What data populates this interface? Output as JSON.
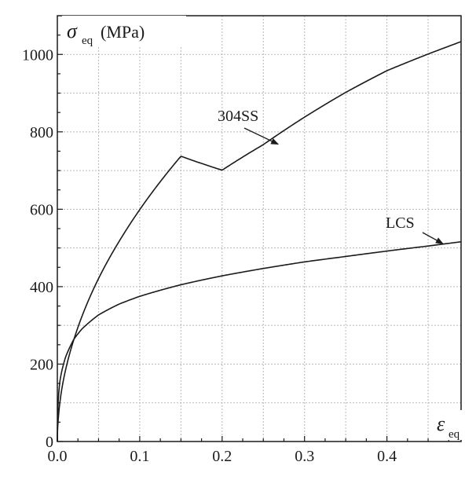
{
  "chart_data": {
    "type": "line",
    "xlabel": {
      "symbol": "ε",
      "subscript": "eq"
    },
    "ylabel": {
      "symbol": "σ",
      "subscript": "eq",
      "unit": "(MPa)"
    },
    "xlim": [
      0,
      0.49
    ],
    "ylim": [
      0,
      1100
    ],
    "xticks": [
      0.0,
      0.1,
      0.2,
      0.3,
      0.4
    ],
    "xtick_labels": [
      "0.0",
      "0.1",
      "0.2",
      "0.3",
      "0.4"
    ],
    "yticks": [
      0,
      200,
      400,
      600,
      800,
      1000
    ],
    "ytick_labels": [
      "0",
      "200",
      "400",
      "600",
      "800",
      "1000"
    ],
    "grid": true,
    "series": [
      {
        "name": "304SS",
        "x": [
          0.0,
          0.001,
          0.003,
          0.005,
          0.01,
          0.02,
          0.03,
          0.05,
          0.075,
          0.1,
          0.15,
          0.2,
          0.25,
          0.3,
          0.35,
          0.4,
          0.45,
          0.49
        ],
        "y": [
          0,
          54,
          99,
          130,
          185,
          263,
          324,
          421,
          517,
          599,
          737,
          701,
          767,
          838,
          902,
          958,
          1001,
          1033
        ]
      },
      {
        "name": "LCS",
        "x": [
          0.0,
          0.001,
          0.003,
          0.005,
          0.01,
          0.02,
          0.03,
          0.05,
          0.075,
          0.1,
          0.15,
          0.2,
          0.25,
          0.3,
          0.35,
          0.4,
          0.45,
          0.49
        ],
        "y": [
          0,
          103,
          154,
          178,
          218,
          264,
          291,
          327,
          355,
          375,
          405,
          428,
          447,
          464,
          478,
          492,
          505,
          516
        ]
      }
    ],
    "annotations": [
      {
        "text": "304SS",
        "series": "304SS",
        "x": 0.268,
        "y": 768
      },
      {
        "text": "LCS",
        "series": "LCS",
        "x": 0.468,
        "y": 511
      }
    ]
  }
}
